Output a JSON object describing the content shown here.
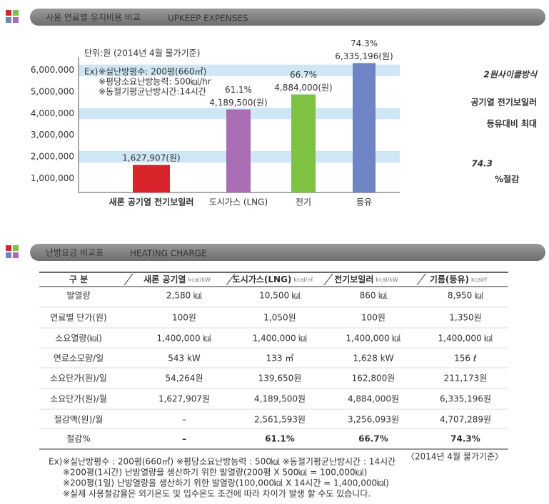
{
  "sections": [
    {
      "title": "사용 연료별 유지비용 비교",
      "subtitle": "UPKEEP EXPENSES"
    },
    {
      "title": "난방요금 비교표",
      "subtitle": "HEATING CHARGE"
    }
  ],
  "chart_data": {
    "type": "bar",
    "unit_note": "단위:원 (2014년 4월 물가기준)",
    "categories": [
      "새론 공기열 전기보일러",
      "도시가스 (LNG)",
      "전기",
      "등유"
    ],
    "values": [
      1627907,
      4189500,
      4884000,
      6335196
    ],
    "value_labels": [
      "1,627,907(원)",
      "4,189,500(원)",
      "4,884,000(원)",
      "6,335,196(원)"
    ],
    "percent_labels": [
      null,
      "61.1%",
      "66.7%",
      "74.3%"
    ],
    "colors": [
      "#d9242b",
      "#a86db3",
      "#7fc241",
      "#6e84c4"
    ],
    "ylim": [
      350000,
      6450000
    ],
    "yticks": [
      {
        "value": 1000000,
        "label": "1,000,000"
      },
      {
        "value": 2000000,
        "label": "2,000,000"
      },
      {
        "value": 3000000,
        "label": "3,000,000"
      },
      {
        "value": 4000000,
        "label": "4,000,000"
      },
      {
        "value": 5000000,
        "label": "5,000,000"
      },
      {
        "value": 6000000,
        "label": "6,000,000"
      }
    ],
    "grid_bands": true,
    "example_note": {
      "prefix": "Ex)",
      "lines": [
        "※실난방평수: 200평(660㎡)",
        "※평당소요난방능력: 500㎉/hr",
        "※동절기평균난방시간:14시간"
      ]
    }
  },
  "promo": {
    "lines": [
      "2원사이클방식",
      "공기열 전기보일러",
      "등유대비 최대"
    ],
    "figure": "74.3",
    "suffix": "%절감"
  },
  "table": {
    "header": [
      {
        "label": "구 분"
      },
      {
        "label": "새론 공기열",
        "unit": "kcal/kW"
      },
      {
        "label": "도시가스(LNG)",
        "unit": "kcal/㎥"
      },
      {
        "label": "전기보일러",
        "unit": "kcal/kW"
      },
      {
        "label": "기름(등유)",
        "unit": "kcal/ℓ"
      }
    ],
    "rows": [
      [
        "발열량",
        "2,580 ㎉",
        "10,500 ㎉",
        "860 ㎉",
        "8,950 ㎉"
      ],
      [
        "연료별 단가(원)",
        "100원",
        "1,050원",
        "100원",
        "1,350원"
      ],
      [
        "소요열량(㎉)",
        "1,400,000 ㎉",
        "1,400,000 ㎉",
        "1,400,000 ㎉",
        "1,400,000 ㎉"
      ],
      [
        "연료소모량/일",
        "543 kW",
        "133 ㎥",
        "1,628 kW",
        "156 ℓ"
      ],
      [
        "소요단가(원)/일",
        "54,264원",
        "139,650원",
        "162,800원",
        "211,173원"
      ],
      [
        "소요단가(원)/월",
        "1,627,907원",
        "4,189,500원",
        "4,884,000원",
        "6,335,196원"
      ],
      [
        "절감액(원)/월",
        "–",
        "2,561,593원",
        "3,256,093원",
        "4,707,289원"
      ],
      [
        "절감%",
        "–",
        "61.1%",
        "66.7%",
        "74.3%"
      ]
    ],
    "note": "〈2014년 4월 물가기준〉"
  },
  "footnotes": {
    "prefix": "Ex)",
    "lines": [
      "※실난방평수 : 200평(660㎡) ※평당소요난방능력 : 500㎉ ※동절기평균난방시간 : 14시간",
      "※200평(1시간) 난방열량을 생산하기 위한 발열량(200평 X 500㎉ = 100,000㎉)",
      "※200평(1일) 난방열량을 생산하기 위한 발열량(100,000㎉ X 14시간 = 1,400,000㎉)",
      "※실제 사용절감율은 외기온도 및 입수온도 조건에 따라 차이가 발생 할 수도 있습니다."
    ]
  }
}
